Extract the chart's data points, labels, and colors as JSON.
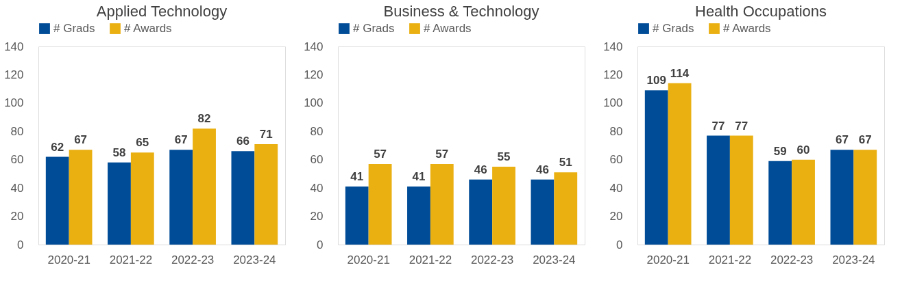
{
  "chart_data": [
    {
      "type": "bar",
      "title": "Applied Technology",
      "categories": [
        "2020-21",
        "2021-22",
        "2022-23",
        "2023-24"
      ],
      "series": [
        {
          "name": "# Grads",
          "color": "#004c97",
          "values": [
            62,
            58,
            67,
            66
          ]
        },
        {
          "name": "# Awards",
          "color": "#eab012",
          "values": [
            67,
            65,
            82,
            71
          ]
        }
      ],
      "ylim": [
        0,
        140
      ],
      "yticks": [
        0,
        20,
        40,
        60,
        80,
        100,
        120,
        140
      ],
      "data_labels": true,
      "legend": "top",
      "grid": false
    },
    {
      "type": "bar",
      "title": "Business & Technology",
      "categories": [
        "2020-21",
        "2021-22",
        "2022-23",
        "2023-24"
      ],
      "series": [
        {
          "name": "# Grads",
          "color": "#004c97",
          "values": [
            41,
            41,
            46,
            46
          ]
        },
        {
          "name": "# Awards",
          "color": "#eab012",
          "values": [
            57,
            57,
            55,
            51
          ]
        }
      ],
      "ylim": [
        0,
        140
      ],
      "yticks": [
        0,
        20,
        40,
        60,
        80,
        100,
        120,
        140
      ],
      "data_labels": true,
      "legend": "top",
      "grid": false
    },
    {
      "type": "bar",
      "title": "Health Occupations",
      "categories": [
        "2020-21",
        "2021-22",
        "2022-23",
        "2023-24"
      ],
      "series": [
        {
          "name": "# Grads",
          "color": "#004c97",
          "values": [
            109,
            77,
            59,
            67
          ]
        },
        {
          "name": "# Awards",
          "color": "#eab012",
          "values": [
            114,
            77,
            60,
            67
          ]
        }
      ],
      "ylim": [
        0,
        140
      ],
      "yticks": [
        0,
        20,
        40,
        60,
        80,
        100,
        120,
        140
      ],
      "data_labels": true,
      "legend": "top",
      "grid": false
    }
  ]
}
